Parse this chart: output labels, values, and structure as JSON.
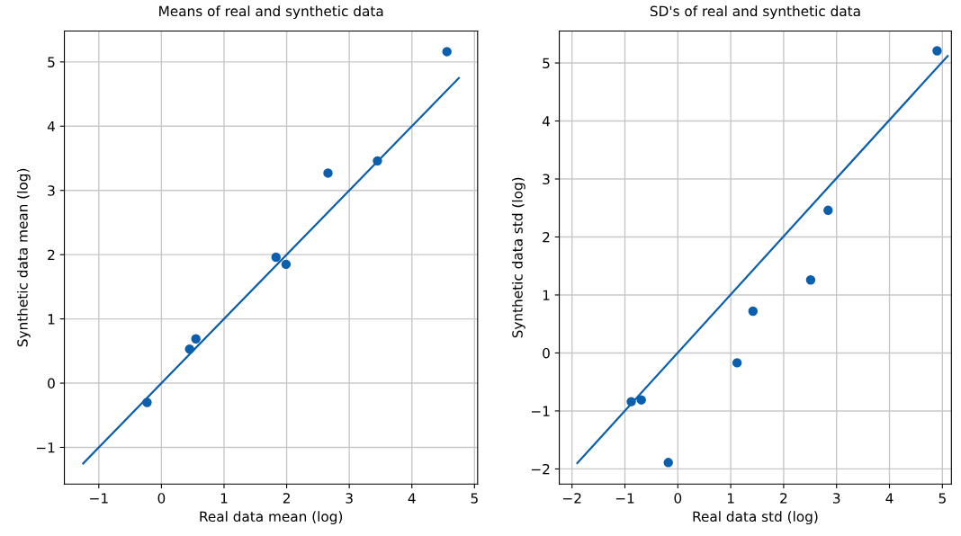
{
  "chart_data": [
    {
      "type": "scatter",
      "title": "Means of real and synthetic data",
      "xlabel": "Real data mean (log)",
      "ylabel": "Synthetic data mean (log)",
      "xlim": [
        -1.55,
        5.05
      ],
      "ylim": [
        -1.57,
        5.48
      ],
      "xticks": [
        -1,
        0,
        1,
        2,
        3,
        4,
        5
      ],
      "yticks": [
        -1,
        0,
        1,
        2,
        3,
        4,
        5
      ],
      "grid": true,
      "series": [
        {
          "color": "#0b5fad",
          "marker": "circle",
          "x": [
            -0.23,
            0.45,
            0.55,
            1.83,
            1.99,
            2.66,
            3.45,
            4.56
          ],
          "values": [
            -0.3,
            0.53,
            0.69,
            1.96,
            1.85,
            3.27,
            3.46,
            5.16
          ]
        },
        {
          "type": "line",
          "color": "#0b5fad",
          "x": [
            -1.25,
            4.75
          ],
          "values": [
            -1.25,
            4.75
          ]
        }
      ]
    },
    {
      "type": "scatter",
      "title": "SD's of real and synthetic data",
      "xlabel": "Real data std (log)",
      "ylabel": "Synthetic data std (log)",
      "xlim": [
        -2.24,
        5.17
      ],
      "ylim": [
        -2.26,
        5.55
      ],
      "xticks": [
        -2,
        -1,
        0,
        1,
        2,
        3,
        4,
        5
      ],
      "yticks": [
        -2,
        -1,
        0,
        1,
        2,
        3,
        4,
        5
      ],
      "grid": true,
      "series": [
        {
          "color": "#0b5fad",
          "marker": "circle",
          "x": [
            -0.88,
            -0.69,
            -0.18,
            1.12,
            1.42,
            2.51,
            2.84,
            4.9
          ],
          "values": [
            -0.84,
            -0.81,
            -1.89,
            -0.17,
            0.72,
            1.26,
            2.46,
            5.21
          ]
        },
        {
          "type": "line",
          "color": "#0b5fad",
          "x": [
            -1.9,
            5.1
          ],
          "values": [
            -1.9,
            5.12
          ]
        }
      ]
    }
  ]
}
